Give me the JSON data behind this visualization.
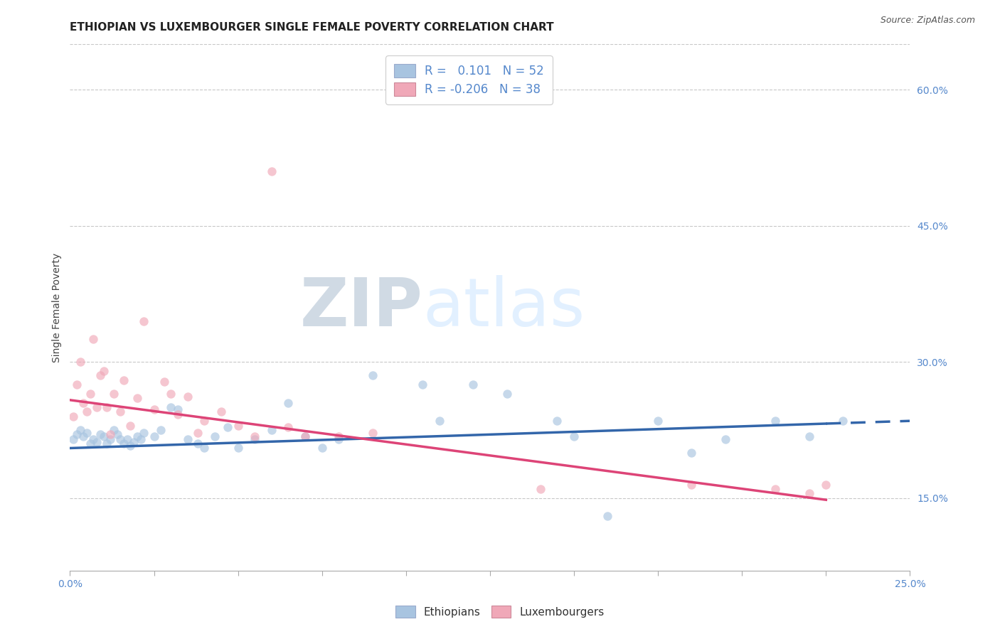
{
  "title": "ETHIOPIAN VS LUXEMBOURGER SINGLE FEMALE POVERTY CORRELATION CHART",
  "source": "Source: ZipAtlas.com",
  "ylabel": "Single Female Poverty",
  "xlim": [
    0.0,
    0.25
  ],
  "ylim": [
    0.07,
    0.65
  ],
  "xtick_positions": [
    0.0,
    0.025,
    0.05,
    0.075,
    0.1,
    0.125,
    0.15,
    0.175,
    0.2,
    0.225,
    0.25
  ],
  "ytick_vals": [
    0.15,
    0.3,
    0.45,
    0.6
  ],
  "ytick_labels": [
    "15.0%",
    "30.0%",
    "45.0%",
    "60.0%"
  ],
  "grid_color": "#c8c8c8",
  "ethiopian_color": "#a8c4e0",
  "luxembourger_color": "#f0a8b8",
  "trend_eth_color": "#3366aa",
  "trend_lux_color": "#dd4477",
  "watermark_color": "#dde8f2",
  "axis_color": "#5588cc",
  "legend_eth_text": "R =   0.101   N = 52",
  "legend_lux_text": "R = -0.206   N = 38",
  "title_fontsize": 11,
  "tick_fontsize": 10,
  "legend_fontsize": 12,
  "source_fontsize": 9,
  "marker_size": 80,
  "marker_alpha": 0.65,
  "ethiopian_x": [
    0.001,
    0.002,
    0.003,
    0.004,
    0.005,
    0.006,
    0.007,
    0.008,
    0.009,
    0.01,
    0.011,
    0.012,
    0.013,
    0.014,
    0.015,
    0.016,
    0.017,
    0.018,
    0.019,
    0.02,
    0.021,
    0.022,
    0.025,
    0.027,
    0.03,
    0.032,
    0.035,
    0.038,
    0.04,
    0.043,
    0.047,
    0.05,
    0.055,
    0.06,
    0.065,
    0.07,
    0.075,
    0.08,
    0.09,
    0.105,
    0.11,
    0.12,
    0.13,
    0.145,
    0.15,
    0.16,
    0.175,
    0.185,
    0.195,
    0.21,
    0.22,
    0.23
  ],
  "ethiopian_y": [
    0.215,
    0.22,
    0.225,
    0.218,
    0.222,
    0.21,
    0.215,
    0.212,
    0.22,
    0.218,
    0.21,
    0.215,
    0.225,
    0.22,
    0.215,
    0.21,
    0.215,
    0.208,
    0.212,
    0.218,
    0.215,
    0.222,
    0.218,
    0.225,
    0.25,
    0.248,
    0.215,
    0.21,
    0.205,
    0.218,
    0.228,
    0.205,
    0.215,
    0.225,
    0.255,
    0.218,
    0.205,
    0.215,
    0.285,
    0.275,
    0.235,
    0.275,
    0.265,
    0.235,
    0.218,
    0.13,
    0.235,
    0.2,
    0.215,
    0.235,
    0.218,
    0.235
  ],
  "luxembourger_x": [
    0.001,
    0.002,
    0.003,
    0.004,
    0.005,
    0.006,
    0.007,
    0.008,
    0.009,
    0.01,
    0.011,
    0.012,
    0.013,
    0.015,
    0.016,
    0.018,
    0.02,
    0.022,
    0.025,
    0.028,
    0.03,
    0.032,
    0.035,
    0.038,
    0.04,
    0.045,
    0.05,
    0.055,
    0.06,
    0.065,
    0.07,
    0.08,
    0.09,
    0.14,
    0.185,
    0.21,
    0.22,
    0.225
  ],
  "luxembourger_y": [
    0.24,
    0.275,
    0.3,
    0.255,
    0.245,
    0.265,
    0.325,
    0.25,
    0.285,
    0.29,
    0.25,
    0.22,
    0.265,
    0.245,
    0.28,
    0.23,
    0.26,
    0.345,
    0.248,
    0.278,
    0.265,
    0.242,
    0.262,
    0.222,
    0.235,
    0.245,
    0.23,
    0.218,
    0.51,
    0.228,
    0.218,
    0.218,
    0.222,
    0.16,
    0.165,
    0.16,
    0.155,
    0.165
  ],
  "eth_trend_x0": 0.0,
  "eth_trend_x1": 0.25,
  "eth_trend_y0": 0.205,
  "eth_trend_y1": 0.235,
  "eth_dash_from": 0.225,
  "lux_trend_x0": 0.0,
  "lux_trend_x1": 0.225,
  "lux_trend_y0": 0.258,
  "lux_trend_y1": 0.148,
  "background_color": "#ffffff"
}
